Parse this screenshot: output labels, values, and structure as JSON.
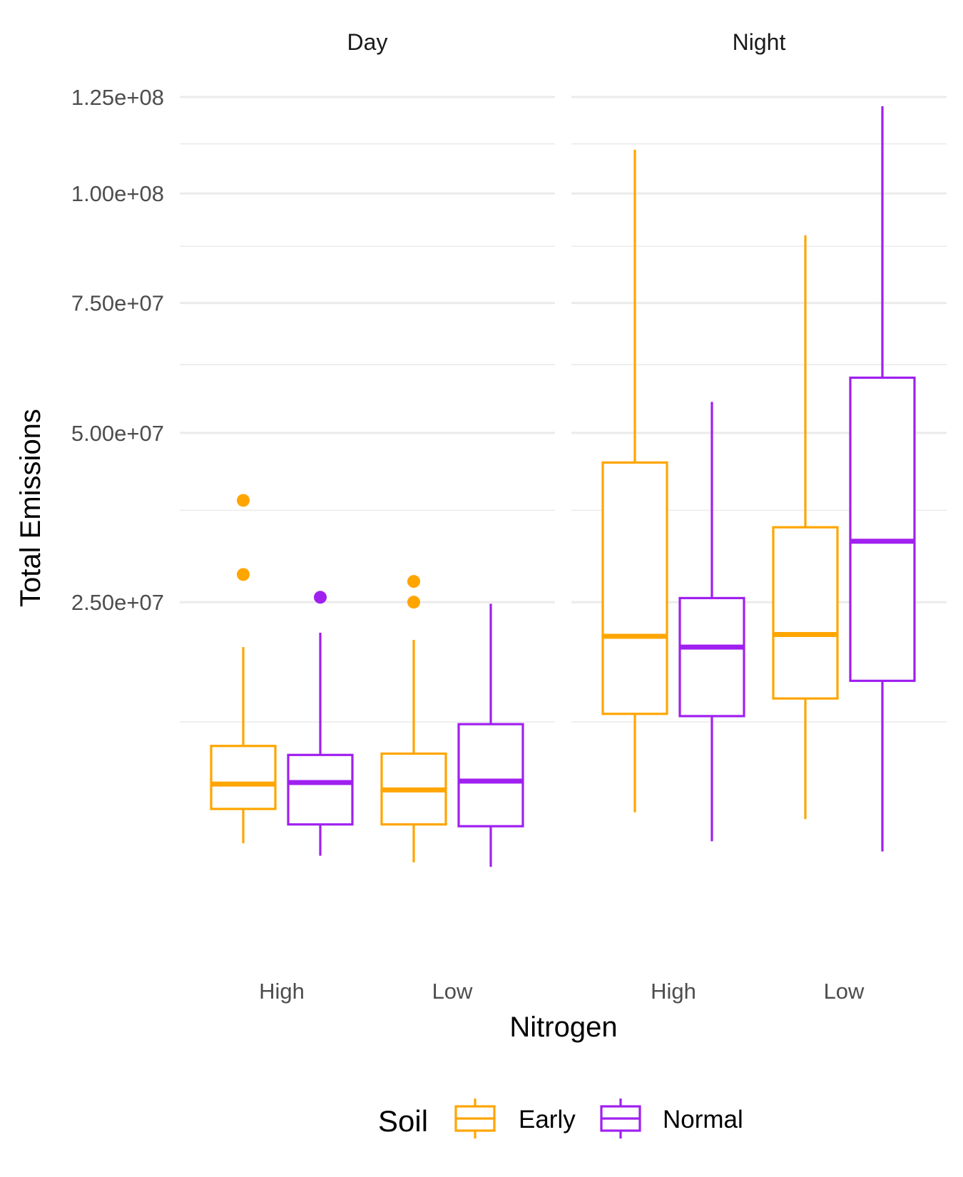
{
  "chart_data": {
    "type": "boxplot",
    "ylabel": "Total Emissions",
    "xlabel": "Nitrogen",
    "y_scale": "sqrt",
    "ylim": [
      0,
      125000000
    ],
    "yticks": [
      25000000,
      50000000,
      75000000,
      100000000,
      125000000
    ],
    "ytick_labels": [
      "2.50e+07",
      "5.00e+07",
      "7.50e+07",
      "1.00e+08",
      "1.25e+08"
    ],
    "y_minor_breaks": [
      12500000,
      37500000,
      62500000,
      87500000,
      112500000
    ],
    "grid": true,
    "colors": {
      "Early": "#ffa500",
      "Normal": "#a020f0"
    },
    "legend": {
      "title": "Soil",
      "position": "bottom",
      "entries": [
        "Early",
        "Normal"
      ]
    },
    "categories": [
      "High",
      "Low"
    ],
    "facets": [
      {
        "title": "Day",
        "boxes": [
          {
            "nitrogen": "High",
            "soil": "Early",
            "lower_whisker": 4200000,
            "q1": 6100000,
            "median": 7700000,
            "q3": 10500000,
            "upper_whisker": 19800000,
            "outliers": [
              28500000,
              39000000
            ]
          },
          {
            "nitrogen": "High",
            "soil": "Normal",
            "lower_whisker": 3600000,
            "q1": 5200000,
            "median": 7800000,
            "q3": 9800000,
            "upper_whisker": 21400000,
            "outliers": [
              25600000
            ]
          },
          {
            "nitrogen": "Low",
            "soil": "Early",
            "lower_whisker": 3300000,
            "q1": 5200000,
            "median": 7300000,
            "q3": 9900000,
            "upper_whisker": 20600000,
            "outliers": [
              25000000,
              27600000
            ]
          },
          {
            "nitrogen": "Low",
            "soil": "Normal",
            "lower_whisker": 3100000,
            "q1": 5100000,
            "median": 7900000,
            "q3": 12300000,
            "upper_whisker": 24800000,
            "outliers": []
          }
        ]
      },
      {
        "title": "Night",
        "boxes": [
          {
            "nitrogen": "High",
            "soil": "Early",
            "lower_whisker": 5900000,
            "q1": 13200000,
            "median": 21000000,
            "q3": 45000000,
            "upper_whisker": 111000000,
            "outliers": []
          },
          {
            "nitrogen": "High",
            "soil": "Normal",
            "lower_whisker": 4300000,
            "q1": 13000000,
            "median": 19800000,
            "q3": 25500000,
            "upper_whisker": 55500000,
            "outliers": []
          },
          {
            "nitrogen": "Low",
            "soil": "Early",
            "lower_whisker": 5500000,
            "q1": 14600000,
            "median": 21200000,
            "q3": 35000000,
            "upper_whisker": 90000000,
            "outliers": []
          },
          {
            "nitrogen": "Low",
            "soil": "Normal",
            "lower_whisker": 3800000,
            "q1": 16300000,
            "median": 33000000,
            "q3": 60000000,
            "upper_whisker": 122500000,
            "outliers": []
          }
        ]
      }
    ]
  }
}
